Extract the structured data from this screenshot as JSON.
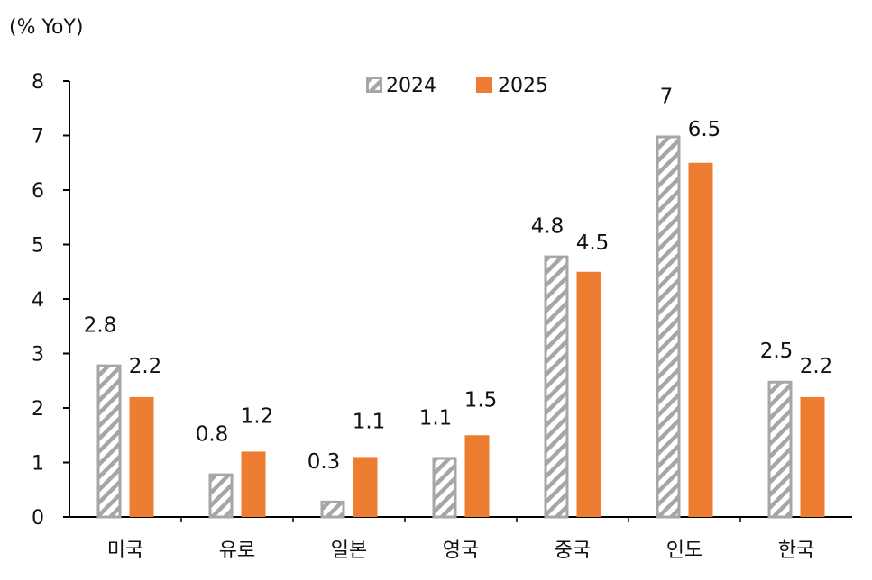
{
  "chart_data": {
    "type": "bar",
    "unit_label": "(% YoY)",
    "categories": [
      "미국",
      "유로",
      "일본",
      "영국",
      "중국",
      "인도",
      "한국"
    ],
    "series": [
      {
        "name": "2024",
        "values": [
          2.8,
          0.8,
          0.3,
          1.1,
          4.8,
          7,
          2.5
        ],
        "labels": [
          "2.8",
          "0.8",
          "0.3",
          "1.1",
          "4.8",
          "7",
          "2.5"
        ],
        "style": "hatched",
        "color": "#a6a6a6"
      },
      {
        "name": "2025",
        "values": [
          2.2,
          1.2,
          1.1,
          1.5,
          4.5,
          6.5,
          2.2
        ],
        "labels": [
          "2.2",
          "1.2",
          "1.1",
          "1.5",
          "4.5",
          "6.5",
          "2.2"
        ],
        "style": "solid",
        "color": "#ed7d31"
      }
    ],
    "ylim": [
      0,
      8
    ],
    "yticks": [
      "0",
      "1",
      "2",
      "3",
      "4",
      "5",
      "6",
      "7",
      "8"
    ],
    "grid": false,
    "legend_position": "top-center"
  }
}
